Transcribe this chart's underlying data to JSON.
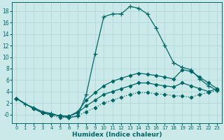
{
  "xlabel": "Humidex (Indice chaleur)",
  "ylabel": "",
  "bg_color": "#cce9e9",
  "grid_color": "#aad4d4",
  "line_color": "#006666",
  "xlim": [
    -0.5,
    23.5
  ],
  "ylim": [
    -1.5,
    19.5
  ],
  "xticks": [
    0,
    1,
    2,
    3,
    4,
    5,
    6,
    7,
    8,
    9,
    10,
    11,
    12,
    13,
    14,
    15,
    16,
    17,
    18,
    19,
    20,
    21,
    22,
    23
  ],
  "yticks": [
    0,
    2,
    4,
    6,
    8,
    10,
    12,
    14,
    16,
    18
  ],
  "ytick_labels": [
    "-0",
    "2",
    "4",
    "6",
    "8",
    "10",
    "12",
    "14",
    "16",
    "18"
  ],
  "line1_x": [
    0,
    1,
    2,
    3,
    4,
    5,
    6,
    7,
    8,
    9,
    10,
    11,
    12,
    13,
    14,
    15,
    16,
    17,
    18,
    19,
    20,
    21,
    22,
    23
  ],
  "line1_y": [
    2.8,
    1.8,
    1.2,
    0.5,
    0.2,
    -0.3,
    -0.5,
    -0.3,
    3.5,
    10.5,
    17.0,
    17.5,
    17.5,
    18.8,
    18.5,
    17.5,
    15.0,
    12.0,
    9.0,
    8.2,
    7.8,
    6.2,
    5.0,
    4.2
  ],
  "line1_style": "-",
  "line1_marker": "+",
  "line2_x": [
    0,
    2,
    3,
    4,
    5,
    6,
    7,
    8,
    9,
    10,
    11,
    12,
    13,
    14,
    15,
    16,
    17,
    18,
    19,
    20,
    21,
    22,
    23
  ],
  "line2_y": [
    2.8,
    1.0,
    0.3,
    0.0,
    -0.2,
    -0.3,
    0.5,
    2.5,
    3.8,
    5.0,
    5.8,
    6.3,
    6.8,
    7.2,
    7.0,
    6.8,
    6.5,
    6.2,
    7.8,
    7.5,
    6.5,
    5.5,
    4.5
  ],
  "line2_style": "-",
  "line2_marker": "D",
  "line3_x": [
    0,
    2,
    3,
    4,
    5,
    6,
    7,
    8,
    9,
    10,
    11,
    12,
    13,
    14,
    15,
    16,
    17,
    18,
    19,
    20,
    21,
    22,
    23
  ],
  "line3_y": [
    2.8,
    1.0,
    0.3,
    0.0,
    -0.2,
    -0.3,
    0.3,
    1.5,
    2.5,
    3.5,
    4.0,
    4.5,
    5.0,
    5.5,
    5.5,
    5.2,
    5.0,
    4.8,
    5.5,
    5.0,
    4.5,
    4.0,
    4.5
  ],
  "line3_style": "-",
  "line3_marker": "D",
  "line4_x": [
    0,
    2,
    3,
    4,
    5,
    6,
    7,
    8,
    9,
    10,
    11,
    12,
    13,
    14,
    15,
    16,
    17,
    18,
    19,
    20,
    21,
    22,
    23
  ],
  "line4_y": [
    2.8,
    1.0,
    0.3,
    -0.2,
    -0.5,
    -0.5,
    -0.2,
    0.5,
    1.2,
    2.0,
    2.5,
    3.0,
    3.5,
    3.8,
    3.8,
    3.6,
    3.5,
    3.3,
    3.2,
    3.0,
    3.5,
    3.8,
    4.2
  ],
  "line4_style": ":",
  "line4_marker": "D"
}
